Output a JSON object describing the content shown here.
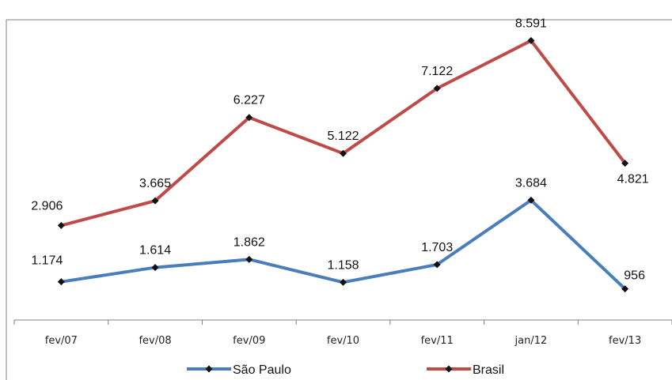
{
  "chart_data": {
    "type": "line",
    "title": "",
    "xlabel": "",
    "ylabel": "",
    "categories": [
      "fev/07",
      "fev/08",
      "fev/09",
      "fev/10",
      "fev/11",
      "jan/12",
      "fev/13"
    ],
    "ylim": [
      0,
      9500
    ],
    "grid": false,
    "legend": "bottom",
    "series": [
      {
        "name": "São Paulo",
        "color": "#4a7ebb",
        "values": [
          1174,
          1614,
          1862,
          1158,
          1703,
          3684,
          956
        ],
        "labels": [
          "1.174",
          "1.614",
          "1.862",
          "1.158",
          "1.703",
          "3.684",
          "956"
        ]
      },
      {
        "name": "Brasil",
        "color": "#be4b48",
        "values": [
          2906,
          3665,
          6227,
          5122,
          7122,
          8591,
          4821
        ],
        "labels": [
          "2.906",
          "3.665",
          "6.227",
          "5.122",
          "7.122",
          "8.591",
          "4.821"
        ]
      }
    ]
  }
}
